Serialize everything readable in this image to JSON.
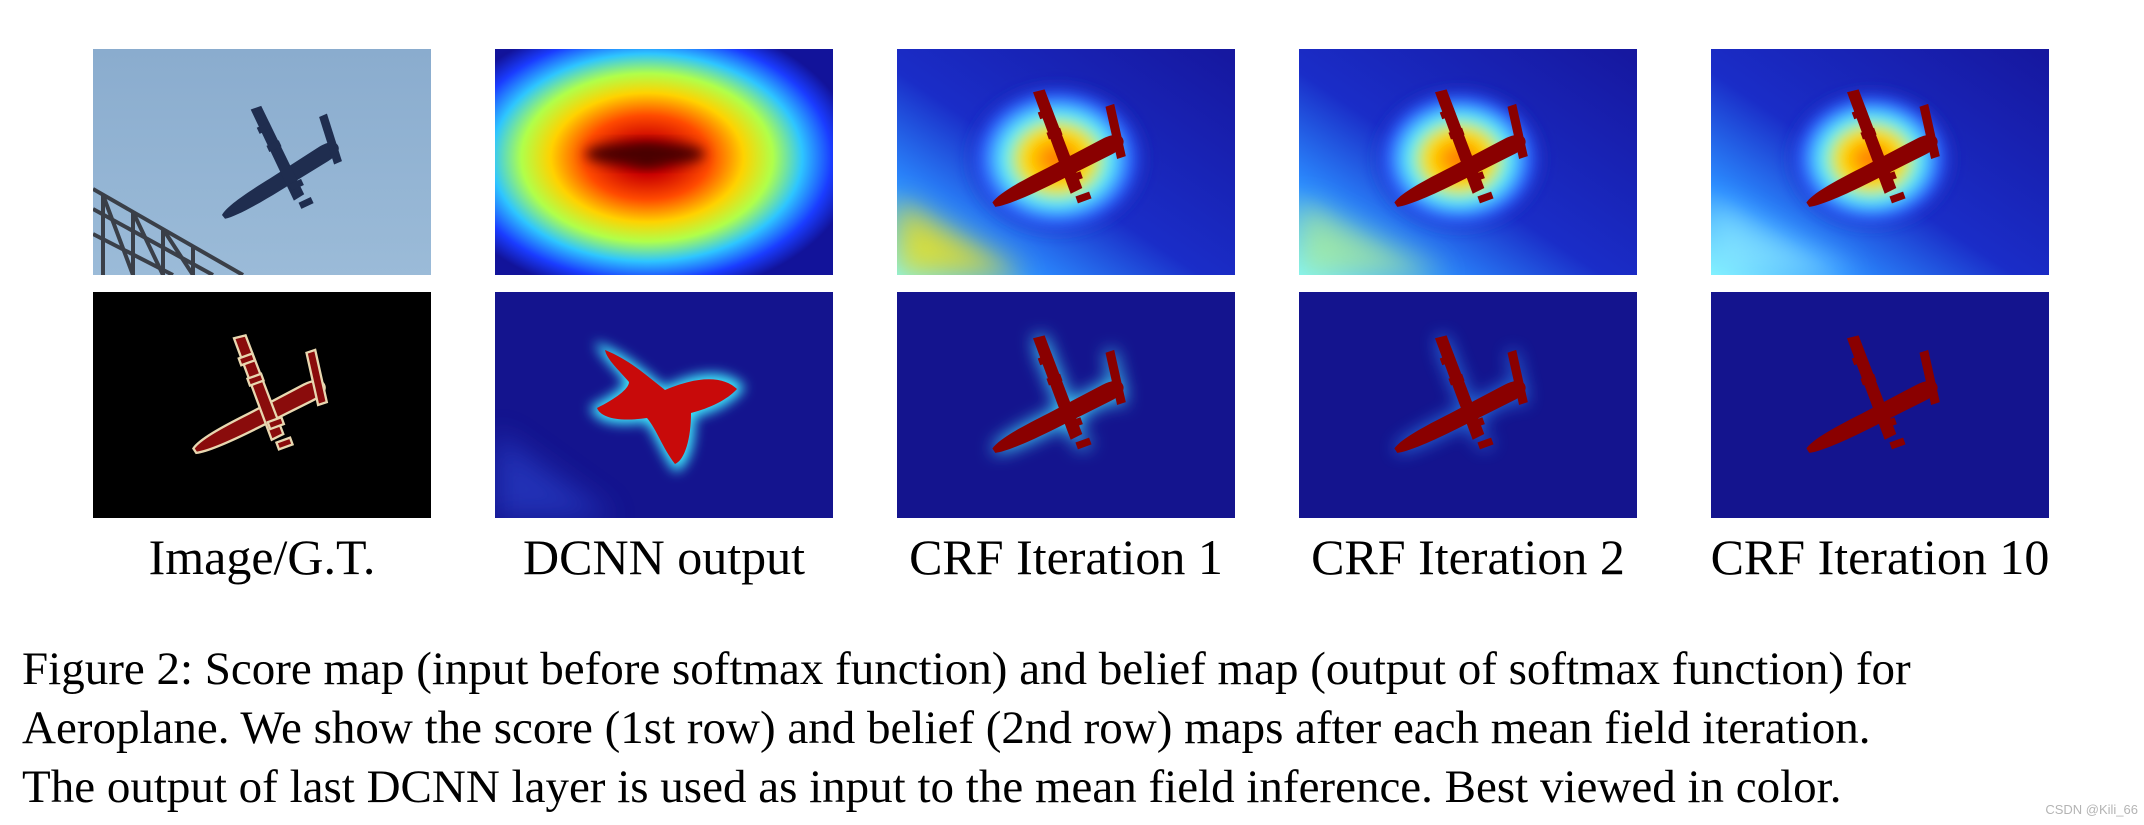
{
  "figure": {
    "columns": [
      {
        "label": "Image/G.T."
      },
      {
        "label": "DCNN output"
      },
      {
        "label": "CRF Iteration 1"
      },
      {
        "label": "CRF Iteration 2"
      },
      {
        "label": "CRF Iteration 10"
      }
    ],
    "caption_lines": [
      "Figure 2: Score map (input before softmax function) and belief map (output of softmax function) for",
      "Aeroplane. We show the score (1st row) and belief (2nd row) maps after each mean field iteration.",
      "The output of last DCNN layer is used as input to the mean field inference. Best viewed in color."
    ],
    "watermark": "CSDN @Kili_66"
  },
  "colors": {
    "sky": "#8fb1d0",
    "plane": "#1d2b4c",
    "jet_dark_blue": "#0d0f8a",
    "jet_red": "#d40c0c",
    "jet_dark_red": "#850000",
    "gt_background": "#000000"
  }
}
